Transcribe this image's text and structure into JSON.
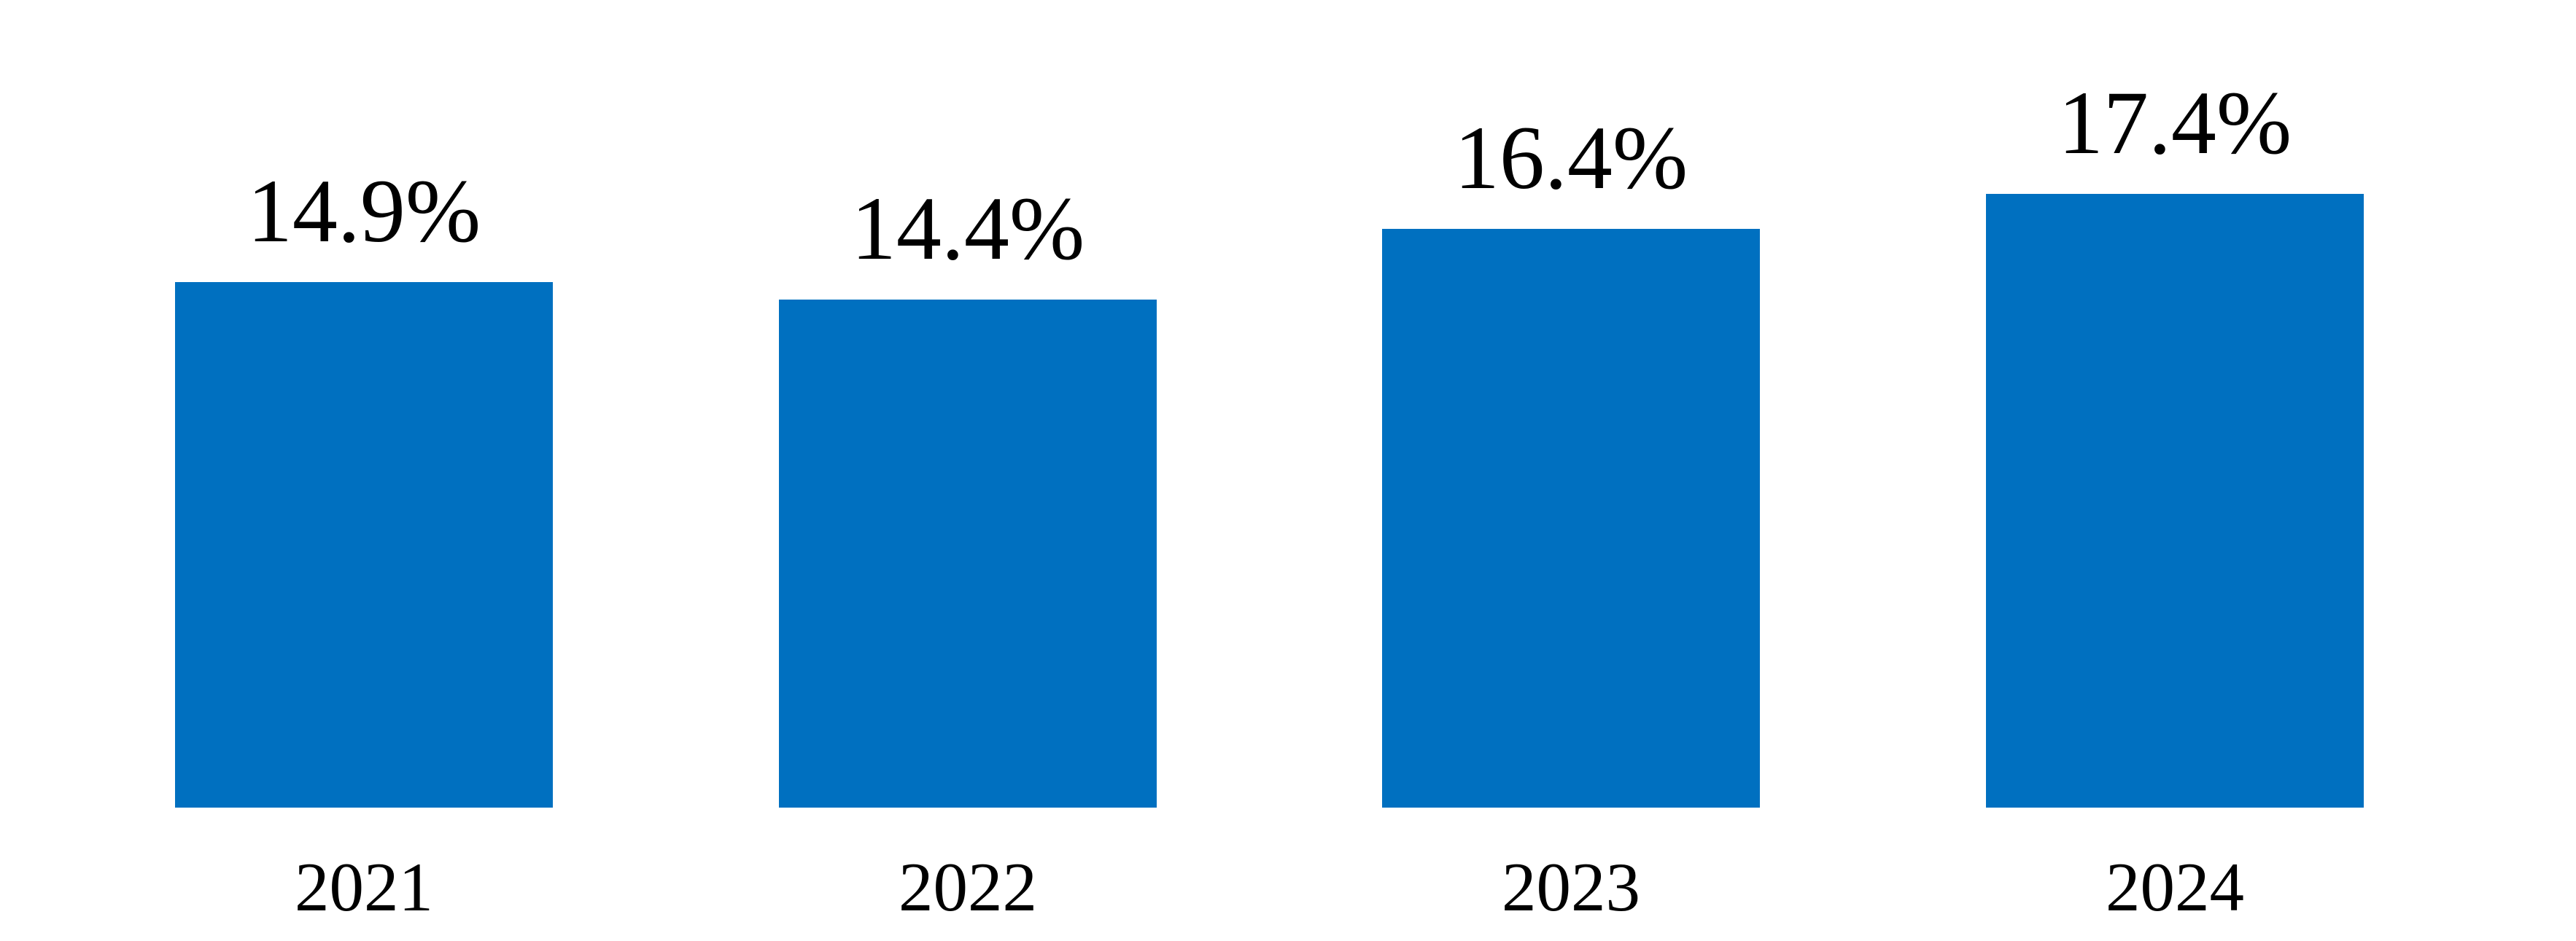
{
  "chart_data": {
    "type": "bar",
    "title": "",
    "xlabel": "",
    "ylabel": "",
    "categories": [
      "2021",
      "2022",
      "2023",
      "2024"
    ],
    "values": [
      14.9,
      14.4,
      16.4,
      17.4
    ],
    "value_labels": [
      "14.9%",
      "14.4%",
      "16.4%",
      "17.4%"
    ],
    "ylim": [
      0,
      18
    ],
    "grid": "off",
    "legend": "none",
    "axes_visible": false,
    "data_label_position": "outside-end",
    "bar_color": "#0070C0",
    "label_color": "#000000",
    "background_color": "#FFFFFF"
  }
}
